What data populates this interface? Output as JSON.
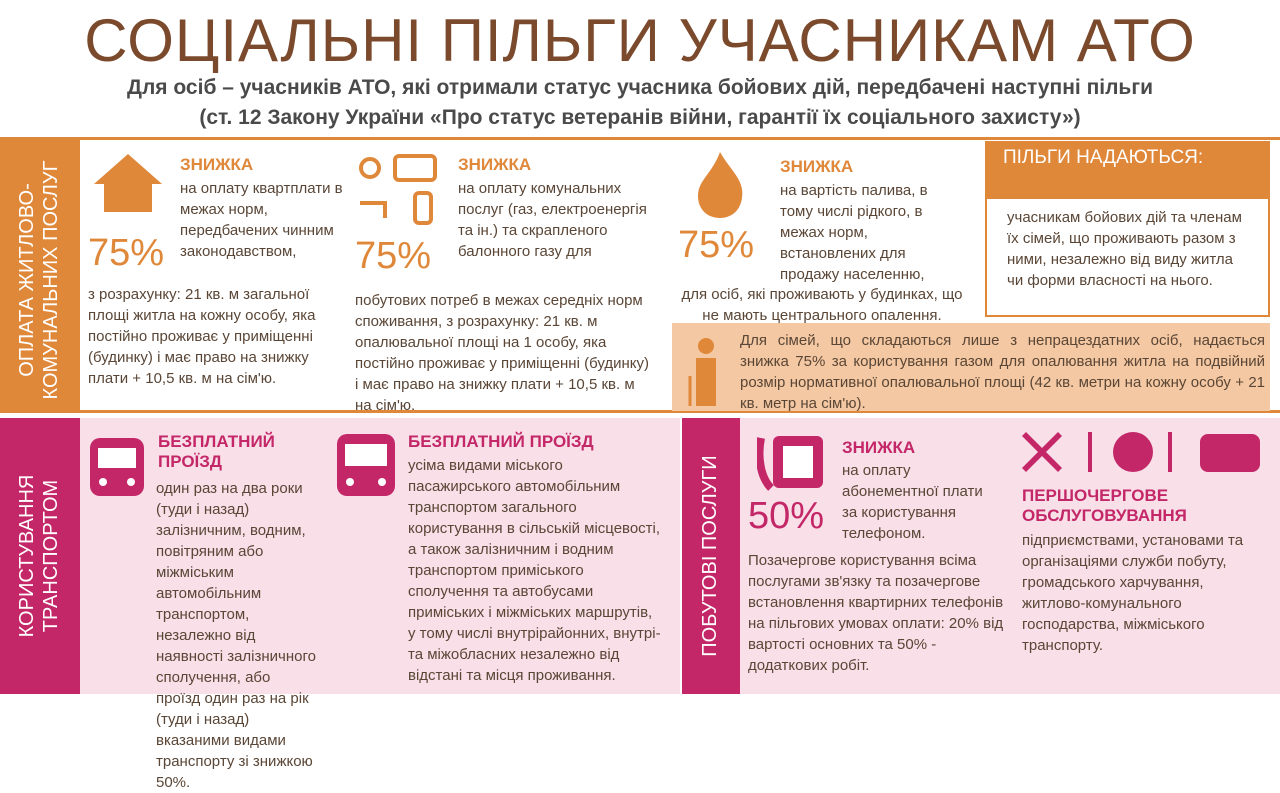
{
  "header": {
    "title": "СОЦІАЛЬНІ ПІЛЬГИ УЧАСНИКАМ АТО",
    "subtitle": [
      "Для осіб – учасників АТО, які отримали статус учасника бойових дій, передбачені наступні пільги",
      "(ст. 12 Закону України «Про статус ветеранів війни, гарантії їх соціального захисту»)"
    ]
  },
  "housing": {
    "side_label": [
      "ОПЛАТА ЖИТЛОВО-",
      "КОМУНАЛЬНИХ ПОСЛУГ"
    ],
    "blocks": [
      {
        "heading": "ЗНИЖКА",
        "percent": "75%",
        "text": [
          "на оплату квартплати в межах норм, передбачених чинним законодавством,",
          "з розрахунку: 21 кв. м загальної площі житла на кожну особу, яка постійно проживає у приміщенні (будинку) і має право на знижку плати + 10,5 кв. м на сім'ю."
        ]
      },
      {
        "heading": "ЗНИЖКА",
        "percent": "75%",
        "text": [
          "на оплату комунальних послуг (газ, електроенергія та ін.) та скрапленого балонного газу для",
          "побутових потреб в межах середніх норм споживання, з розрахунку: 21 кв. м опалювальної площі на 1 особу, яка постійно проживає у приміщенні (будинку) і має право на знижку плати + 10,5 кв. м на сім'ю."
        ]
      },
      {
        "heading": "ЗНИЖКА",
        "percent": "75%",
        "text": [
          "на вартість палива, в тому числі рідкого, в межах норм, встановлених для продажу населенню,",
          "для осіб, які проживають у будинках, що не мають центрального опалення."
        ]
      }
    ],
    "box": {
      "heading": "ПІЛЬГИ НАДАЮТЬСЯ:",
      "text": "учасникам бойових дій та членам їх сімей, що проживають разом з ними, незалежно від виду житла чи форми власності на нього."
    },
    "note": "Для сімей, що складаються лише з непрацездатних осіб, надається знижка 75% за користування газом для опалювання житла на подвійний розмір нормативної опалювальної площі (42 кв. метри на кожну особу + 21 кв. метр на сім'ю)."
  },
  "transport": {
    "side_label": [
      "КОРИСТУВАННЯ",
      "ТРАНСПОРТОМ"
    ],
    "blocks": [
      {
        "heading": "БЕЗПЛАТНИЙ ПРОЇЗД",
        "text": "один раз на два роки (туди і назад) залізничним, водним, повітряним або міжміським автомобільним транспортом, незалежно від наявності залізничного сполучення, або проїзд один раз на рік (туди і назад) вказаними видами транспорту зі знижкою 50%."
      },
      {
        "heading": "БЕЗПЛАТНИЙ ПРОЇЗД",
        "text": "усіма видами міського пасажирського автомобільним транспортом загального користування в сільській місцевості, а також залізничним і водним транспортом приміського сполучення та автобусами приміських і міжміських маршрутів, у тому числі внутрірайонних, внутрі- та міжобласних незалежно від відстані та місця проживання."
      }
    ]
  },
  "services": {
    "side_label": "ПОБУТОВІ ПОСЛУГИ",
    "blocks": [
      {
        "heading": "ЗНИЖКА",
        "percent": "50%",
        "text": [
          "на оплату абонементної плати за користування телефоном.",
          "Позачергове користування всіма послугами зв'язку та позачергове встановлення квартирних телефонів на пільгових умовах оплати: 20% від вартості основних та 50% - додаткових робіт."
        ]
      },
      {
        "heading": "ПЕРШОЧЕРГОВЕ ОБСЛУГОВУВАННЯ",
        "text": "підприємствами, установами та організаціями служби побуту, громадського харчування, житлово-комунального господарства, міжміського транспорту."
      }
    ]
  }
}
